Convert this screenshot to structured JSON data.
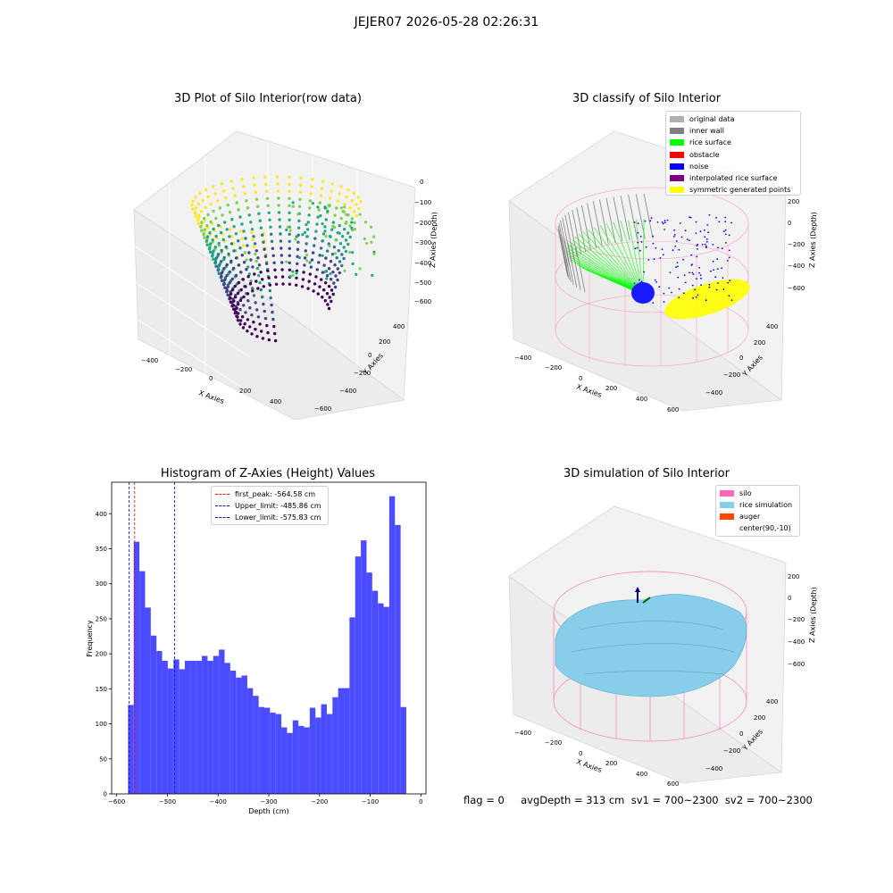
{
  "figure_title": "JEJER07 2026-05-28 02:26:31",
  "panels": {
    "raw": {
      "title": "3D Plot of Silo Interior(row data)",
      "xlabel": "X Axies",
      "ylabel": "Y Axies",
      "zlabel": "Z Axies (Depth)",
      "xticks": [
        "−400",
        "−200",
        "0",
        "200",
        "400"
      ],
      "yticks": [
        "−600",
        "−400",
        "−200",
        "0",
        "200",
        "400"
      ],
      "zticks": [
        "0",
        "−100",
        "−200",
        "−300",
        "−400",
        "−500",
        "−600"
      ],
      "colormap": [
        "#fde725",
        "#7ad151",
        "#22a884",
        "#2a788e",
        "#414487",
        "#440154"
      ]
    },
    "classify": {
      "title": "3D classify of Silo Interior",
      "xlabel": "X Axies",
      "ylabel": "Y Axies",
      "zlabel": "Z Axies (Depth)",
      "xticks": [
        "−400",
        "−200",
        "0",
        "200",
        "400",
        "600"
      ],
      "yticks": [
        "−400",
        "−200",
        "0",
        "200",
        "400"
      ],
      "zticks": [
        "200",
        "0",
        "−200",
        "−400",
        "−600"
      ],
      "legend": [
        {
          "label": "original data",
          "color": "#b0b0b0"
        },
        {
          "label": "inner wall",
          "color": "#808080"
        },
        {
          "label": "rice surface",
          "color": "#00ff00"
        },
        {
          "label": "obstacle",
          "color": "#ff0000"
        },
        {
          "label": "noise",
          "color": "#0000ff"
        },
        {
          "label": "interpolated rice surface",
          "color": "#800080"
        },
        {
          "label": "symmetric generated points",
          "color": "#ffff00"
        }
      ]
    },
    "histogram": {
      "title": "Histogram of Z-Axies (Height) Values",
      "xlabel": "Depth (cm)",
      "ylabel": "Frequency",
      "legend": [
        {
          "label": "first_peak: -564.58 cm",
          "color": "#ff0000"
        },
        {
          "label": "Upper_limit: -485.86 cm",
          "color": "#0000ff"
        },
        {
          "label": "Lower_limit: -575.83 cm",
          "color": "#0000ff"
        }
      ]
    },
    "simulation": {
      "title": "3D simulation of Silo Interior",
      "xlabel": "X Axies",
      "ylabel": "Y Axies",
      "zlabel": "Z Axies (Depth)",
      "xticks": [
        "−400",
        "−200",
        "0",
        "200",
        "400",
        "600"
      ],
      "yticks": [
        "−400",
        "−200",
        "0",
        "200",
        "400"
      ],
      "zticks": [
        "200",
        "0",
        "−200",
        "−400",
        "−600"
      ],
      "legend": [
        {
          "label": "silo",
          "color": "#ff69b4"
        },
        {
          "label": "rice simulation",
          "color": "#87ceeb"
        },
        {
          "label": "auger",
          "color": "#ff4500"
        },
        {
          "label": "center(90,-10)",
          "color": "#ffffff"
        }
      ]
    }
  },
  "footer": "flag = 0     avgDepth = 313 cm  sv1 = 700~2300  sv2 = 700~2300",
  "chart_data": {
    "type": "bar",
    "title": "Histogram of Z-Axies (Height) Values",
    "xlabel": "Depth (cm)",
    "ylabel": "Frequency",
    "xlim": [
      -610,
      10
    ],
    "ylim": [
      0,
      445
    ],
    "xticks": [
      -600,
      -500,
      -400,
      -300,
      -200,
      -100,
      0
    ],
    "yticks": [
      0,
      50,
      100,
      150,
      200,
      250,
      300,
      350,
      400
    ],
    "bar_color": "#4b4bff",
    "bin_start": -577.6,
    "bin_width": 11.2,
    "values": [
      127,
      360,
      318,
      266,
      226,
      204,
      190,
      179,
      192,
      178,
      190,
      190,
      190,
      197,
      190,
      197,
      206,
      187,
      176,
      166,
      169,
      151,
      140,
      124,
      123,
      116,
      114,
      95,
      87,
      105,
      97,
      95,
      123,
      109,
      128,
      114,
      138,
      151,
      151,
      252,
      339,
      362,
      316,
      290,
      272,
      267,
      425,
      384,
      124
    ],
    "vlines": [
      {
        "x": -564.58,
        "color": "#ff0000",
        "label": "first_peak: -564.58 cm"
      },
      {
        "x": -485.86,
        "color": "#0000ff",
        "label": "Upper_limit: -485.86 cm"
      },
      {
        "x": -575.83,
        "color": "#0000ff",
        "label": "Lower_limit: -575.83 cm"
      }
    ],
    "legend_position": "upper center"
  }
}
